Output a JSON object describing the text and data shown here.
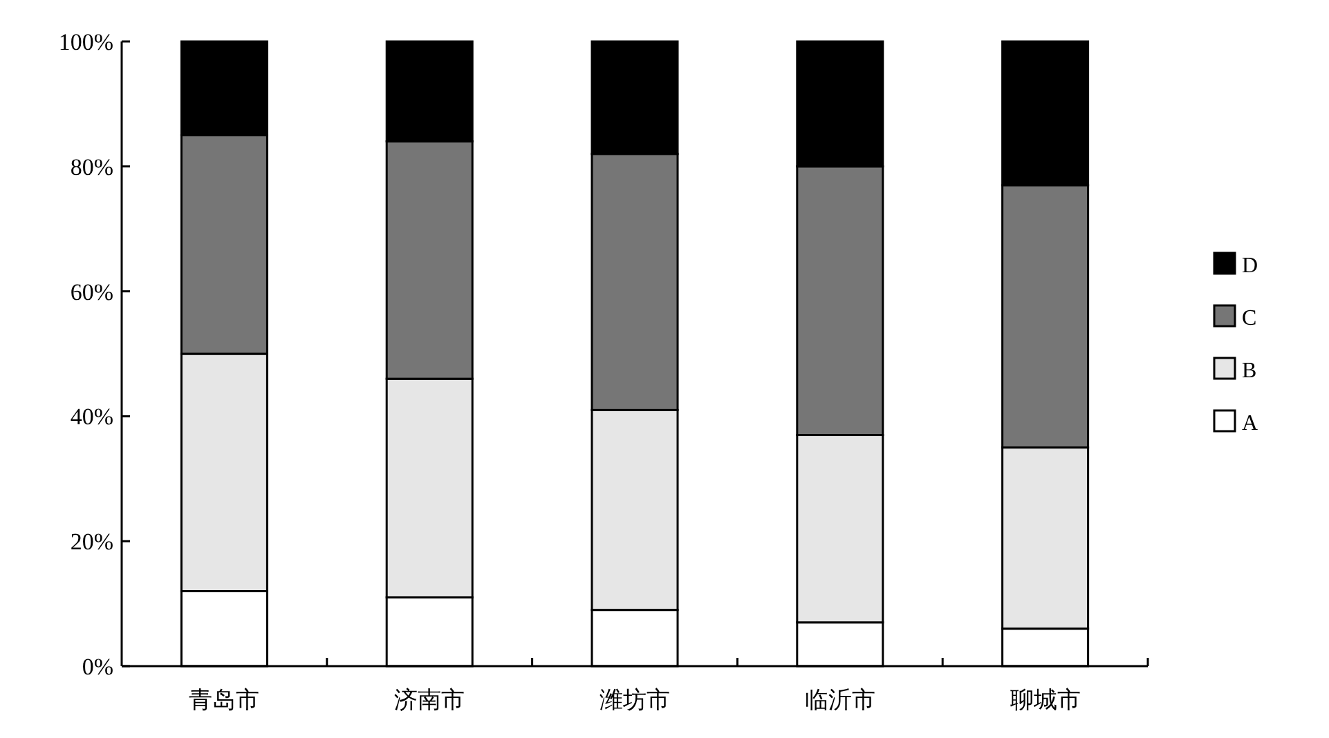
{
  "chart_data": {
    "type": "bar",
    "stacked": true,
    "categories": [
      "青岛市",
      "济南市",
      "潍坊市",
      "临沂市",
      "聊城市"
    ],
    "series": [
      {
        "name": "A",
        "color": "#ffffff",
        "values": [
          12,
          11,
          9,
          7,
          6
        ]
      },
      {
        "name": "B",
        "color": "#e6e6e6",
        "values": [
          38,
          35,
          32,
          30,
          29
        ]
      },
      {
        "name": "C",
        "color": "#767676",
        "values": [
          35,
          38,
          41,
          43,
          42
        ]
      },
      {
        "name": "D",
        "color": "#000000",
        "values": [
          15,
          16,
          18,
          20,
          23
        ]
      }
    ],
    "ylim": [
      0,
      100
    ],
    "yticks": [
      {
        "value": 0,
        "label": "0%"
      },
      {
        "value": 20,
        "label": "20%"
      },
      {
        "value": 40,
        "label": "40%"
      },
      {
        "value": 60,
        "label": "60%"
      },
      {
        "value": 80,
        "label": "80%"
      },
      {
        "value": 100,
        "label": "100%"
      }
    ],
    "legend": "right",
    "grid": false
  }
}
